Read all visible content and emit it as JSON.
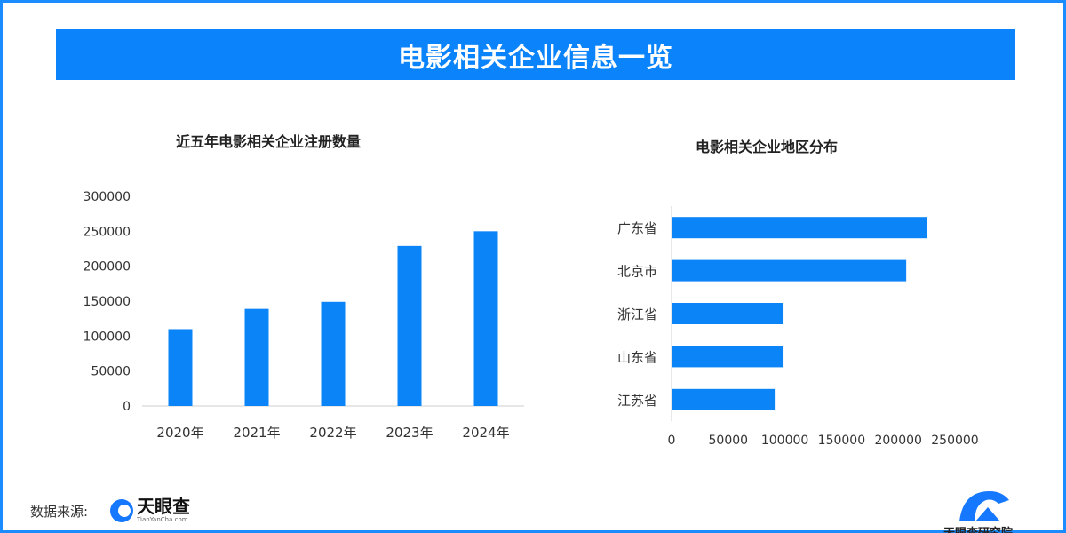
{
  "header": {
    "title": "电影相关企业信息一览"
  },
  "charts": {
    "left_title": "近五年电影相关企业注册数量",
    "right_title": "电影相关企业地区分布"
  },
  "footer": {
    "source_label": "数据来源:",
    "logo_text": "天眼查",
    "logo_sub": "TianYanCha.com",
    "brand_text": "天眼查研究院"
  },
  "colors": {
    "accent": "#0b84fb",
    "bar": "#0a84f7"
  },
  "chart_data": [
    {
      "type": "bar",
      "orientation": "vertical",
      "title": "近五年电影相关企业注册数量",
      "categories": [
        "2020年",
        "2021年",
        "2022年",
        "2023年",
        "2024年"
      ],
      "values": [
        110000,
        139000,
        149000,
        229000,
        250000
      ],
      "ylim": [
        0,
        300000
      ],
      "yticks": [
        "0",
        "50000",
        "100000",
        "150000",
        "200000",
        "250000",
        "300000"
      ],
      "grid": false
    },
    {
      "type": "bar",
      "orientation": "horizontal",
      "title": "电影相关企业地区分布",
      "categories": [
        "广东省",
        "北京市",
        "浙江省",
        "山东省",
        "江苏省"
      ],
      "values": [
        225000,
        207000,
        98000,
        98000,
        91000
      ],
      "xlim": [
        0,
        250000
      ],
      "xticks": [
        "0",
        "50000",
        "100000",
        "150000",
        "200000",
        "250000"
      ],
      "grid": false
    }
  ]
}
